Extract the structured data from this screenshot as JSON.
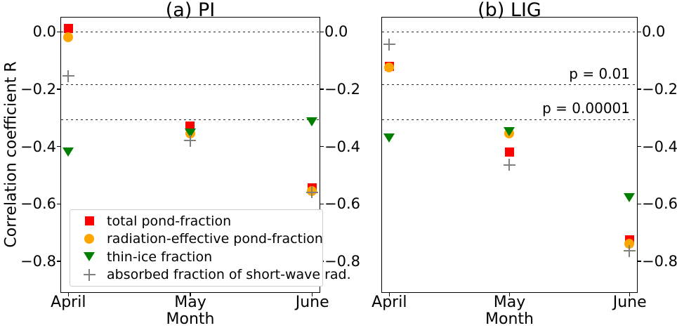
{
  "figure": {
    "ylabel": "Correlation coefficient R",
    "xlabel": "Month",
    "months": [
      "April",
      "May",
      "June"
    ],
    "ytick_labels": [
      "0.0",
      "−0.2",
      "−0.4",
      "−0.6",
      "−0.8"
    ],
    "ytick_values": [
      0.0,
      -0.2,
      -0.4,
      -0.6,
      -0.8
    ],
    "ylim": [
      0.049,
      -0.907
    ],
    "background_color": "#ffffff",
    "axis_color": "#000000",
    "gridline_color": "#2a2a2a"
  },
  "legend": {
    "border_color": "#cccccc",
    "position": "lower left of subplot (a)"
  },
  "chart_data": [
    {
      "type": "scatter",
      "title": "(a) PI",
      "xlabel": "Month",
      "ylabel": "Correlation coefficient R",
      "categories": [
        "April",
        "May",
        "June"
      ],
      "ylim": [
        0.049,
        -0.907
      ],
      "grid": "horizontal dashed reference lines only",
      "reference_lines": [
        {
          "value": 0.0,
          "label": ""
        },
        {
          "value": -0.185,
          "label": ""
        },
        {
          "value": -0.307,
          "label": ""
        }
      ],
      "series": [
        {
          "name": "total pond-fraction",
          "marker": "square",
          "color": "#ff0000",
          "values": [
            0.01,
            -0.33,
            -0.545
          ]
        },
        {
          "name": "radiation-effective pond-fraction",
          "marker": "circle",
          "color": "#ffa500",
          "values": [
            -0.02,
            -0.355,
            -0.555
          ]
        },
        {
          "name": "thin-ice fraction",
          "marker": "triangle-down",
          "color": "#008000",
          "values": [
            -0.42,
            -0.355,
            -0.315
          ]
        },
        {
          "name": "absorbed fraction of short-wave rad.",
          "marker": "plus",
          "color": "#808080",
          "values": [
            -0.155,
            -0.38,
            -0.56
          ]
        }
      ]
    },
    {
      "type": "scatter",
      "title": "(b) LIG",
      "xlabel": "Month",
      "categories": [
        "April",
        "May",
        "June"
      ],
      "ylim": [
        0.049,
        -0.907
      ],
      "grid": "horizontal dashed reference lines only",
      "reference_lines": [
        {
          "value": 0.0,
          "label": ""
        },
        {
          "value": -0.185,
          "label": "p = 0.01"
        },
        {
          "value": -0.307,
          "label": "p = 0.00001"
        }
      ],
      "series": [
        {
          "name": "total pond-fraction",
          "marker": "square",
          "color": "#ff0000",
          "values": [
            -0.12,
            -0.42,
            -0.725
          ]
        },
        {
          "name": "radiation-effective pond-fraction",
          "marker": "circle",
          "color": "#ffa500",
          "values": [
            -0.125,
            -0.355,
            -0.74
          ]
        },
        {
          "name": "thin-ice fraction",
          "marker": "triangle-down",
          "color": "#008000",
          "values": [
            -0.37,
            -0.35,
            -0.58
          ]
        },
        {
          "name": "absorbed fraction of short-wave rad.",
          "marker": "plus",
          "color": "#808080",
          "values": [
            -0.045,
            -0.465,
            -0.765
          ]
        }
      ]
    }
  ]
}
